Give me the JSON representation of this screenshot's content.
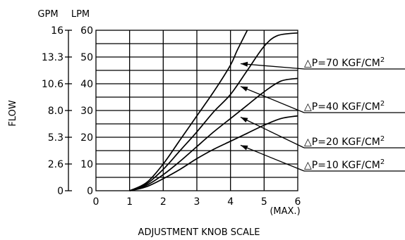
{
  "chart_data": {
    "type": "line",
    "title": "",
    "xlabel": "ADJUSTMENT KNOB SCALE",
    "ylabel": "FLOW",
    "x_ticks": [
      "0",
      "1",
      "2",
      "3",
      "4",
      "5",
      "6"
    ],
    "x_max_note": "(MAX.)",
    "xlim": [
      0,
      6
    ],
    "ylim": [
      0,
      60
    ],
    "left_axis_unit": "GPM",
    "left_axis_ticks": [
      {
        "label": "16",
        "value": 60
      },
      {
        "label": "13.3",
        "value": 50
      },
      {
        "label": "10.6",
        "value": 40
      },
      {
        "label": "8.0",
        "value": 30
      },
      {
        "label": "5.3",
        "value": 20
      },
      {
        "label": "2.6",
        "value": 10
      },
      {
        "label": "0",
        "value": 0
      }
    ],
    "right_axis_unit": "LPM",
    "right_axis_ticks": [
      "60",
      "50",
      "40",
      "30",
      "20",
      "10",
      "0"
    ],
    "grid": true,
    "series": [
      {
        "name": "△P=70 KGF/CM²",
        "label_prefix": "△P=70 KGF/CM",
        "label_sup": "2",
        "pointer_at": [
          4.3,
          47.5
        ],
        "x": [
          1.0,
          1.5,
          2.0,
          2.5,
          3.0,
          3.5,
          4.0,
          4.2,
          4.5
        ],
        "y": [
          0,
          3.0,
          10.0,
          19.0,
          28.0,
          37.0,
          47.0,
          52.5,
          60.0
        ]
      },
      {
        "name": "△P=40 KGF/CM²",
        "label_prefix": "△P=40 KGF/CM",
        "label_sup": "2",
        "pointer_at": [
          4.3,
          39.0
        ],
        "x": [
          1.0,
          1.5,
          2.0,
          2.5,
          3.0,
          3.5,
          4.0,
          4.5,
          5.0,
          5.4,
          6.0
        ],
        "y": [
          0,
          2.5,
          8.0,
          15.0,
          22.0,
          29.5,
          36.0,
          45.0,
          54.0,
          58.0,
          59.0
        ]
      },
      {
        "name": "△P=20 KGF/CM²",
        "label_prefix": "△P=20 KGF/CM",
        "label_sup": "2",
        "pointer_at": [
          4.3,
          27.5
        ],
        "x": [
          1.0,
          1.5,
          2.0,
          2.5,
          3.0,
          3.5,
          4.0,
          4.5,
          5.0,
          5.5,
          6.0
        ],
        "y": [
          0,
          2.0,
          6.0,
          11.0,
          16.5,
          22.0,
          27.0,
          32.0,
          37.0,
          41.0,
          42.0
        ]
      },
      {
        "name": "△P=10 KGF/CM²",
        "label_prefix": "△P=10 KGF/CM",
        "label_sup": "2",
        "pointer_at": [
          4.3,
          17.0
        ],
        "x": [
          1.0,
          1.5,
          2.0,
          2.5,
          3.0,
          3.5,
          4.0,
          4.5,
          5.0,
          5.5,
          6.0
        ],
        "y": [
          0,
          1.5,
          4.5,
          8.0,
          12.0,
          15.5,
          18.5,
          21.5,
          24.5,
          27.0,
          28.0
        ]
      }
    ]
  }
}
